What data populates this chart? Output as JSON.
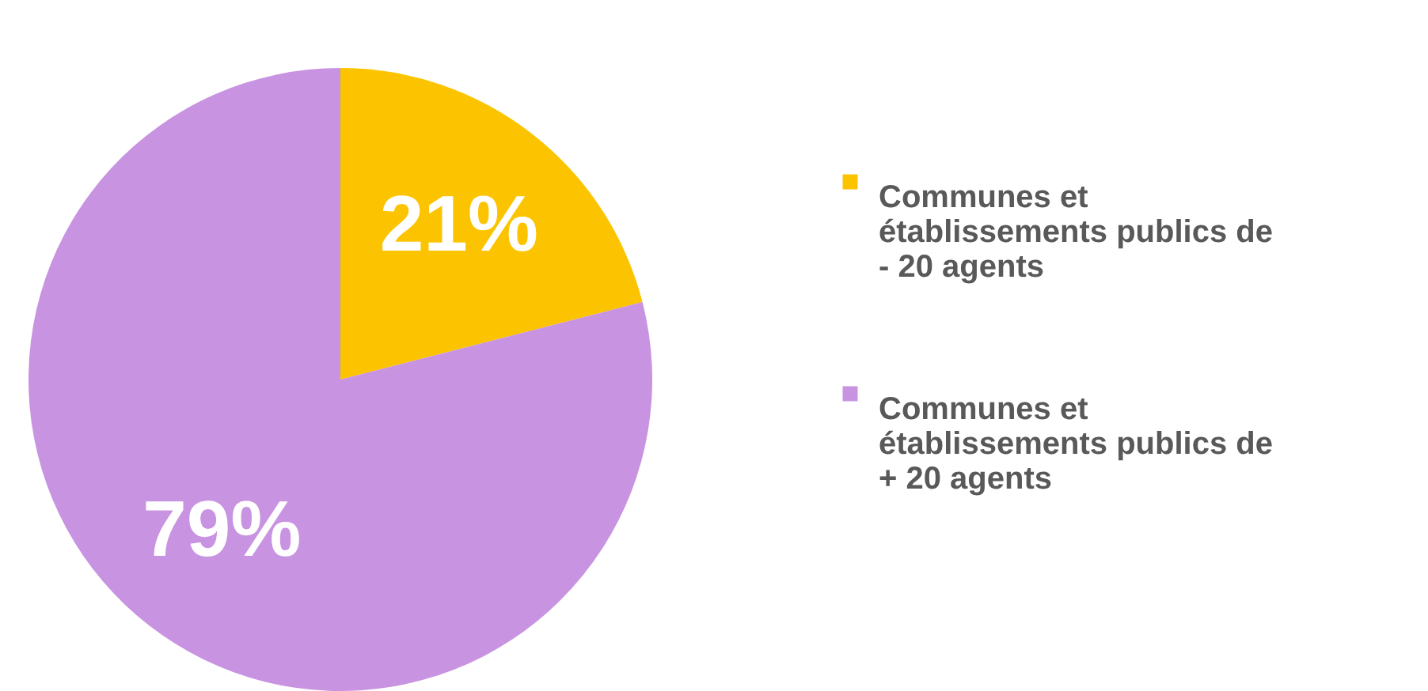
{
  "chart_data": {
    "type": "pie",
    "categories": [
      "Communes et établissements publics de - 20 agents",
      "Communes et établissements publics de + 20 agents"
    ],
    "values": [
      21,
      79
    ],
    "colors": [
      "#fcc400",
      "#c893e0"
    ],
    "value_labels": [
      "21%",
      "79%"
    ],
    "legend": "right"
  }
}
